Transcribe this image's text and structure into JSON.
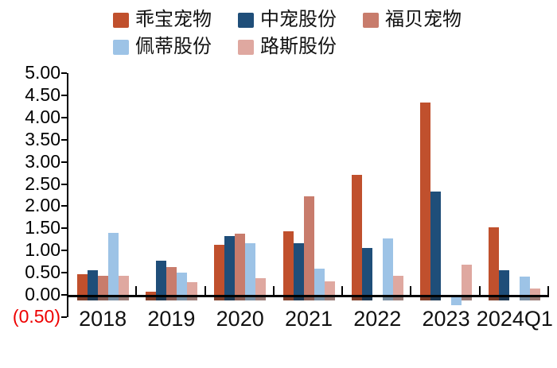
{
  "chart_data": {
    "type": "bar",
    "title": "",
    "xlabel": "",
    "ylabel": "",
    "categories": [
      "2018",
      "2019",
      "2020",
      "2021",
      "2022",
      "2023",
      "2024Q1"
    ],
    "series": [
      {
        "name": "乖宝宠物",
        "color": "#c0502d",
        "values": [
          0.47,
          0.07,
          1.13,
          1.43,
          2.7,
          4.33,
          1.52
        ]
      },
      {
        "name": "中宠股份",
        "color": "#1f4e79",
        "values": [
          0.55,
          0.78,
          1.33,
          1.17,
          1.06,
          2.33,
          0.55
        ]
      },
      {
        "name": "福贝宠物",
        "color": "#c87c6c",
        "values": [
          0.44,
          0.63,
          1.38,
          2.22,
          null,
          null,
          null
        ]
      },
      {
        "name": "佩蒂股份",
        "color": "#9dc3e6",
        "values": [
          1.4,
          0.5,
          1.16,
          0.6,
          1.27,
          -0.11,
          0.42
        ]
      },
      {
        "name": "路斯股份",
        "color": "#dfa8a0",
        "values": [
          0.44,
          0.28,
          0.38,
          0.3,
          0.43,
          0.68,
          0.14
        ]
      }
    ],
    "ylim": [
      -0.5,
      5.0
    ],
    "ytick_step": 0.5,
    "ytick_labels": [
      "5.00",
      "4.50",
      "4.00",
      "3.50",
      "3.00",
      "2.50",
      "2.00",
      "1.50",
      "1.00",
      "0.50",
      "0.00",
      "(0.50)"
    ],
    "negative_tick_label": "(0.50)",
    "negative_tick_color": "#ee0000",
    "axis_color": "#000000",
    "background_color": "#ffffff",
    "legend_position": "top",
    "grid": false,
    "bar_baseline_shadow": true
  }
}
